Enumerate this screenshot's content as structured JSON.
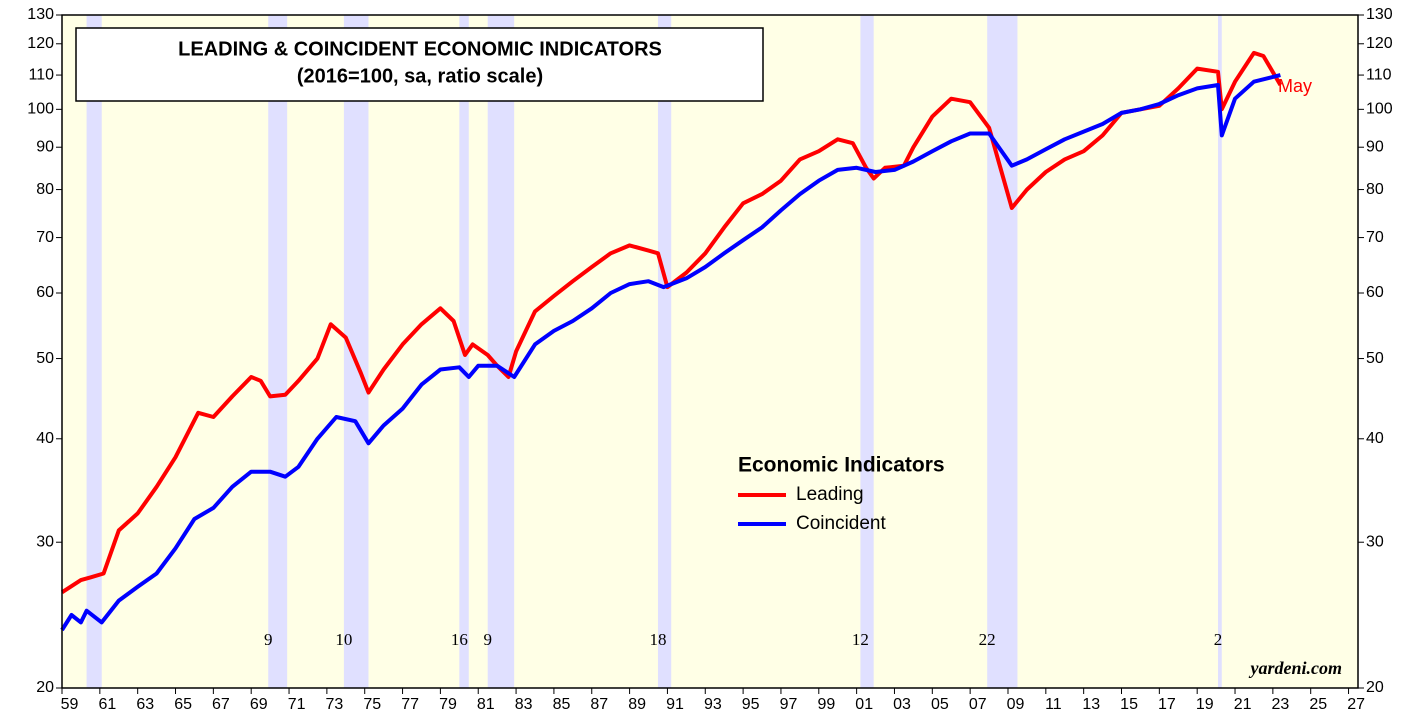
{
  "chart_data": {
    "type": "line",
    "title": "LEADING & COINCIDENT ECONOMIC INDICATORS",
    "subtitle": "(2016=100, sa, ratio scale)",
    "legend_title": "Economic Indicators",
    "source": "yardeni.com",
    "end_label": "May",
    "log_scale": true,
    "xlim": [
      1959,
      2027.5
    ],
    "ylim": [
      20,
      130
    ],
    "xticks": [
      {
        "value": 1959,
        "label": "59"
      },
      {
        "value": 1961,
        "label": "61"
      },
      {
        "value": 1963,
        "label": "63"
      },
      {
        "value": 1965,
        "label": "65"
      },
      {
        "value": 1967,
        "label": "67"
      },
      {
        "value": 1969,
        "label": "69"
      },
      {
        "value": 1971,
        "label": "71"
      },
      {
        "value": 1973,
        "label": "73"
      },
      {
        "value": 1975,
        "label": "75"
      },
      {
        "value": 1977,
        "label": "77"
      },
      {
        "value": 1979,
        "label": "79"
      },
      {
        "value": 1981,
        "label": "81"
      },
      {
        "value": 1983,
        "label": "83"
      },
      {
        "value": 1985,
        "label": "85"
      },
      {
        "value": 1987,
        "label": "87"
      },
      {
        "value": 1989,
        "label": "89"
      },
      {
        "value": 1991,
        "label": "91"
      },
      {
        "value": 1993,
        "label": "93"
      },
      {
        "value": 1995,
        "label": "95"
      },
      {
        "value": 1997,
        "label": "97"
      },
      {
        "value": 1999,
        "label": "99"
      },
      {
        "value": 2001,
        "label": "01"
      },
      {
        "value": 2003,
        "label": "03"
      },
      {
        "value": 2005,
        "label": "05"
      },
      {
        "value": 2007,
        "label": "07"
      },
      {
        "value": 2009,
        "label": "09"
      },
      {
        "value": 2011,
        "label": "11"
      },
      {
        "value": 2013,
        "label": "13"
      },
      {
        "value": 2015,
        "label": "15"
      },
      {
        "value": 2017,
        "label": "17"
      },
      {
        "value": 2019,
        "label": "19"
      },
      {
        "value": 2021,
        "label": "21"
      },
      {
        "value": 2023,
        "label": "23"
      },
      {
        "value": 2025,
        "label": "25"
      },
      {
        "value": 2027,
        "label": "27"
      }
    ],
    "yticks": [
      20,
      30,
      40,
      50,
      60,
      70,
      80,
      90,
      100,
      110,
      120,
      130
    ],
    "recessions": [
      {
        "start": 1960.3,
        "end": 1961.1
      },
      {
        "start": 1969.9,
        "end": 1970.9,
        "label": 9
      },
      {
        "start": 1973.9,
        "end": 1975.2,
        "label": 10
      },
      {
        "start": 1980.0,
        "end": 1980.5,
        "label": 16
      },
      {
        "start": 1981.5,
        "end": 1982.9,
        "label": 9
      },
      {
        "start": 1990.5,
        "end": 1991.2,
        "label": 18
      },
      {
        "start": 2001.2,
        "end": 2001.9,
        "label": 12
      },
      {
        "start": 2007.9,
        "end": 2009.5,
        "label": 22
      },
      {
        "start": 2020.1,
        "end": 2020.3,
        "label": 2
      }
    ],
    "series": [
      {
        "name": "Leading",
        "color": "#ff0000",
        "x": [
          1959,
          1960,
          1960.5,
          1961.2,
          1962,
          1963,
          1964,
          1965,
          1966.2,
          1967,
          1968,
          1969,
          1969.5,
          1970,
          1970.8,
          1971.5,
          1972.5,
          1973.2,
          1974,
          1974.8,
          1975.2,
          1976,
          1977,
          1978,
          1979,
          1979.7,
          1980.3,
          1980.7,
          1981.5,
          1982,
          1982.6,
          1983,
          1984,
          1985,
          1986,
          1987,
          1988,
          1989,
          1990,
          1990.5,
          1991,
          1992,
          1993,
          1994,
          1995,
          1996,
          1997,
          1998,
          1999,
          2000,
          2000.8,
          2001.5,
          2001.9,
          2002.5,
          2003.5,
          2004,
          2005,
          2006,
          2007,
          2008,
          2008.6,
          2009.2,
          2010,
          2011,
          2012,
          2013,
          2014,
          2015,
          2016,
          2017,
          2018,
          2019,
          2020.1,
          2020.3,
          2021,
          2022,
          2022.5,
          2023.4
        ],
        "values": [
          26.1,
          27,
          27.2,
          27.5,
          31,
          32.5,
          35,
          38,
          43,
          42.5,
          45,
          47.5,
          47,
          45,
          45.2,
          47,
          50,
          55,
          53,
          48,
          45.5,
          48.5,
          52,
          55,
          57.5,
          55.5,
          50.5,
          52,
          50.5,
          49,
          47.5,
          51,
          57,
          59.5,
          62,
          64.5,
          67,
          68.5,
          67.5,
          67,
          61,
          63.5,
          67,
          72,
          77,
          79,
          82,
          87,
          89,
          92,
          91,
          85,
          82.5,
          85,
          85.5,
          90,
          98,
          103,
          102,
          95,
          85,
          76,
          80,
          84,
          87,
          89,
          93,
          99,
          100,
          101,
          106,
          112,
          111,
          100,
          108,
          117,
          116,
          107
        ]
      },
      {
        "name": "Coincident",
        "color": "#0000ff",
        "x": [
          1959,
          1959.5,
          1960,
          1960.3,
          1961.1,
          1962,
          1963,
          1964,
          1965,
          1966,
          1967,
          1968,
          1969,
          1970,
          1970.8,
          1971.5,
          1972.5,
          1973.5,
          1974.5,
          1975.2,
          1976,
          1977,
          1978,
          1979,
          1980,
          1980.5,
          1981,
          1982,
          1982.9,
          1984,
          1985,
          1986,
          1987,
          1988,
          1989,
          1990,
          1990.8,
          1992,
          1993,
          1994,
          1995,
          1996,
          1997,
          1998,
          1999,
          2000,
          2001,
          2002,
          2003,
          2004,
          2005,
          2006,
          2007,
          2008,
          2009.2,
          2010,
          2011,
          2012,
          2013,
          2014,
          2015,
          2016,
          2017,
          2018,
          2019,
          2020.1,
          2020.3,
          2021,
          2022,
          2023.4
        ],
        "values": [
          23.5,
          24.5,
          24,
          24.8,
          24,
          25.5,
          26.5,
          27.5,
          29.5,
          32,
          33,
          35,
          36.5,
          36.5,
          36,
          37,
          40,
          42.5,
          42,
          39.5,
          41.5,
          43.5,
          46.5,
          48.5,
          48.8,
          47.5,
          49,
          49,
          47.5,
          52,
          54,
          55.5,
          57.5,
          60,
          61.5,
          62,
          61,
          62.5,
          64.5,
          67,
          69.5,
          72,
          75.5,
          79,
          82,
          84.5,
          85,
          84,
          84.5,
          86.5,
          89,
          91.5,
          93.5,
          93.5,
          85.5,
          87,
          89.5,
          92,
          94,
          96,
          99,
          100,
          101.5,
          104,
          106,
          107,
          93,
          103,
          108,
          110
        ]
      }
    ]
  }
}
